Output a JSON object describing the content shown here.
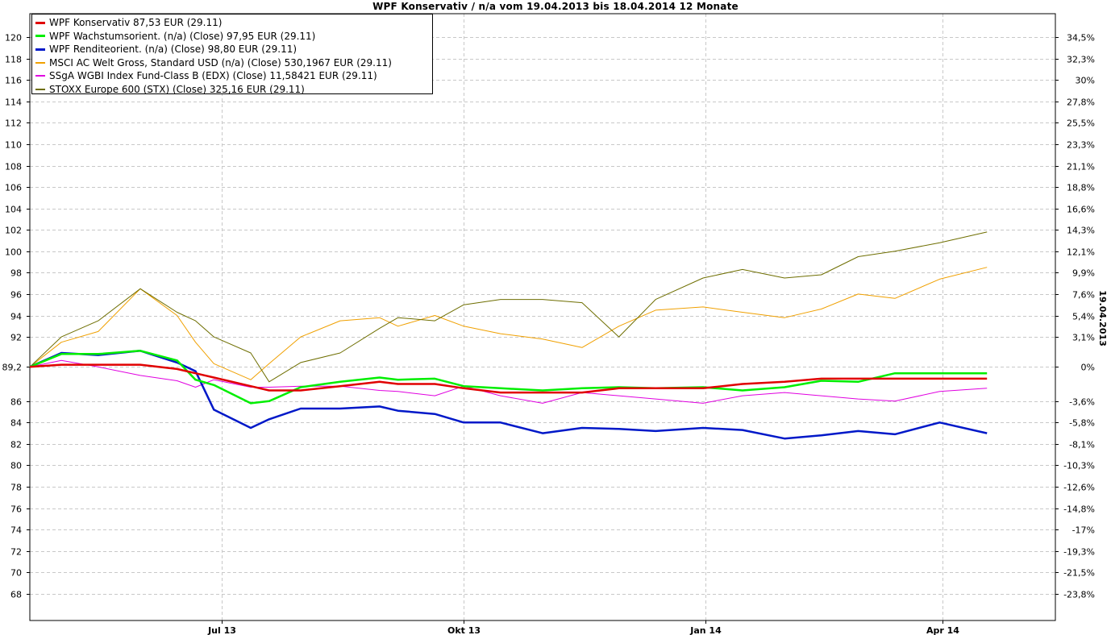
{
  "chart_data": {
    "type": "line",
    "title": "WPF Konservativ / n/a vom 19.04.2013 bis 18.04.2014 12 Monate",
    "xlabel": "",
    "ylabel": "",
    "x_range": [
      "2013-04-19",
      "2014-05-14"
    ],
    "x_ticks": [
      {
        "date": "2013-07-01",
        "label": "Jul 13"
      },
      {
        "date": "2013-10-01",
        "label": "Okt 13"
      },
      {
        "date": "2014-01-01",
        "label": "Jan 14"
      },
      {
        "date": "2014-04-01",
        "label": "Apr 14"
      }
    ],
    "ylim": [
      65.5,
      122.2
    ],
    "y_ticks": [
      68,
      70,
      72,
      74,
      76,
      78,
      80,
      82,
      84,
      86,
      89.2,
      92,
      94,
      96,
      98,
      100,
      102,
      104,
      106,
      108,
      110,
      112,
      114,
      116,
      118,
      120
    ],
    "y_tick_labels": [
      "68",
      "70",
      "72",
      "74",
      "76",
      "78",
      "80",
      "82",
      "84",
      "86",
      "89,2",
      "92",
      "94",
      "96",
      "98",
      "100",
      "102",
      "104",
      "106",
      "108",
      "110",
      "112",
      "114",
      "116",
      "118",
      "120"
    ],
    "y2_ticks": [
      {
        "label": "34,5%",
        "value": 120
      },
      {
        "label": "32,3%",
        "value": 118
      },
      {
        "label": "30%",
        "value": 116
      },
      {
        "label": "27,8%",
        "value": 114
      },
      {
        "label": "25,5%",
        "value": 112
      },
      {
        "label": "23,3%",
        "value": 110
      },
      {
        "label": "21,1%",
        "value": 108
      },
      {
        "label": "18,8%",
        "value": 106
      },
      {
        "label": "16,6%",
        "value": 104
      },
      {
        "label": "14,3%",
        "value": 102
      },
      {
        "label": "12,1%",
        "value": 100
      },
      {
        "label": "9,9%",
        "value": 98
      },
      {
        "label": "7,6%",
        "value": 96
      },
      {
        "label": "5,4%",
        "value": 94
      },
      {
        "label": "3,1%",
        "value": 92
      },
      {
        "label": "0%",
        "value": 89.2
      },
      {
        "label": "-3,6%",
        "value": 86
      },
      {
        "label": "-5,8%",
        "value": 84
      },
      {
        "label": "-8,1%",
        "value": 82
      },
      {
        "label": "-10,3%",
        "value": 80
      },
      {
        "label": "-12,6%",
        "value": 78
      },
      {
        "label": "-14,8%",
        "value": 76
      },
      {
        "label": "-17%",
        "value": 74
      },
      {
        "label": "-19,3%",
        "value": 72
      },
      {
        "label": "-21,5%",
        "value": 70
      },
      {
        "label": "-23,8%",
        "value": 68
      }
    ],
    "side_label": "19.04.2013",
    "grid": true,
    "legend_position": "top-left",
    "series": [
      {
        "name": "WPF Konservativ 87,53 EUR (29.11)",
        "color": "#e00000",
        "width": 2.5,
        "points": [
          [
            "2013-04-19",
            89.2
          ],
          [
            "2013-05-01",
            89.4
          ],
          [
            "2013-05-15",
            89.4
          ],
          [
            "2013-05-31",
            89.4
          ],
          [
            "2013-06-14",
            89.0
          ],
          [
            "2013-06-21",
            88.6
          ],
          [
            "2013-06-28",
            88.2
          ],
          [
            "2013-07-12",
            87.4
          ],
          [
            "2013-07-19",
            87.0
          ],
          [
            "2013-07-31",
            87.0
          ],
          [
            "2013-08-15",
            87.4
          ],
          [
            "2013-08-30",
            87.8
          ],
          [
            "2013-09-06",
            87.6
          ],
          [
            "2013-09-20",
            87.6
          ],
          [
            "2013-10-01",
            87.2
          ],
          [
            "2013-10-15",
            86.8
          ],
          [
            "2013-10-31",
            86.8
          ],
          [
            "2013-11-15",
            86.8
          ],
          [
            "2013-11-29",
            87.2
          ],
          [
            "2013-12-13",
            87.2
          ],
          [
            "2013-12-31",
            87.2
          ],
          [
            "2014-01-15",
            87.6
          ],
          [
            "2014-01-31",
            87.8
          ],
          [
            "2014-02-14",
            88.1
          ],
          [
            "2014-02-28",
            88.1
          ],
          [
            "2014-03-14",
            88.1
          ],
          [
            "2014-03-31",
            88.1
          ],
          [
            "2014-04-18",
            88.1
          ]
        ]
      },
      {
        "name": "WPF Wachstumsorient. (n/a) (Close) 97,95 EUR (29.11)",
        "color": "#00ee00",
        "width": 2.5,
        "points": [
          [
            "2013-04-19",
            89.2
          ],
          [
            "2013-05-01",
            90.4
          ],
          [
            "2013-05-15",
            90.4
          ],
          [
            "2013-05-31",
            90.7
          ],
          [
            "2013-06-14",
            89.8
          ],
          [
            "2013-06-21",
            88.0
          ],
          [
            "2013-06-28",
            87.5
          ],
          [
            "2013-07-12",
            85.8
          ],
          [
            "2013-07-19",
            86.0
          ],
          [
            "2013-07-31",
            87.3
          ],
          [
            "2013-08-15",
            87.8
          ],
          [
            "2013-08-30",
            88.2
          ],
          [
            "2013-09-06",
            88.0
          ],
          [
            "2013-09-20",
            88.1
          ],
          [
            "2013-10-01",
            87.4
          ],
          [
            "2013-10-15",
            87.2
          ],
          [
            "2013-10-31",
            87.0
          ],
          [
            "2013-11-15",
            87.2
          ],
          [
            "2013-11-29",
            87.3
          ],
          [
            "2013-12-13",
            87.2
          ],
          [
            "2013-12-31",
            87.3
          ],
          [
            "2014-01-15",
            87.0
          ],
          [
            "2014-01-31",
            87.3
          ],
          [
            "2014-02-14",
            87.9
          ],
          [
            "2014-02-28",
            87.8
          ],
          [
            "2014-03-14",
            88.6
          ],
          [
            "2014-03-31",
            88.6
          ],
          [
            "2014-04-18",
            88.6
          ]
        ]
      },
      {
        "name": "WPF Renditeorient. (n/a) (Close) 98,80 EUR (29.11)",
        "color": "#0018c8",
        "width": 2.5,
        "points": [
          [
            "2013-04-19",
            89.2
          ],
          [
            "2013-05-01",
            90.5
          ],
          [
            "2013-05-15",
            90.3
          ],
          [
            "2013-05-31",
            90.7
          ],
          [
            "2013-06-14",
            89.6
          ],
          [
            "2013-06-21",
            88.8
          ],
          [
            "2013-06-28",
            85.2
          ],
          [
            "2013-07-12",
            83.5
          ],
          [
            "2013-07-19",
            84.3
          ],
          [
            "2013-07-31",
            85.3
          ],
          [
            "2013-08-15",
            85.3
          ],
          [
            "2013-08-30",
            85.5
          ],
          [
            "2013-09-06",
            85.1
          ],
          [
            "2013-09-20",
            84.8
          ],
          [
            "2013-10-01",
            84.0
          ],
          [
            "2013-10-15",
            84.0
          ],
          [
            "2013-10-31",
            83.0
          ],
          [
            "2013-11-15",
            83.5
          ],
          [
            "2013-11-29",
            83.4
          ],
          [
            "2013-12-13",
            83.2
          ],
          [
            "2013-12-31",
            83.5
          ],
          [
            "2014-01-15",
            83.3
          ],
          [
            "2014-01-31",
            82.5
          ],
          [
            "2014-02-14",
            82.8
          ],
          [
            "2014-02-28",
            83.2
          ],
          [
            "2014-03-14",
            82.9
          ],
          [
            "2014-03-31",
            84.0
          ],
          [
            "2014-04-18",
            83.0
          ]
        ]
      },
      {
        "name": "MSCI AC Welt Gross, Standard USD (n/a) (Close) 530,1967 EUR (29.11)",
        "color": "#f0a000",
        "width": 1,
        "points": [
          [
            "2013-04-19",
            89.2
          ],
          [
            "2013-05-01",
            91.5
          ],
          [
            "2013-05-15",
            92.5
          ],
          [
            "2013-05-31",
            96.5
          ],
          [
            "2013-06-14",
            94.0
          ],
          [
            "2013-06-21",
            91.5
          ],
          [
            "2013-06-28",
            89.5
          ],
          [
            "2013-07-12",
            88.0
          ],
          [
            "2013-07-19",
            89.5
          ],
          [
            "2013-07-31",
            92.0
          ],
          [
            "2013-08-15",
            93.5
          ],
          [
            "2013-08-30",
            93.8
          ],
          [
            "2013-09-06",
            93.0
          ],
          [
            "2013-09-20",
            94.0
          ],
          [
            "2013-10-01",
            93.0
          ],
          [
            "2013-10-15",
            92.3
          ],
          [
            "2013-10-31",
            91.8
          ],
          [
            "2013-11-15",
            91.0
          ],
          [
            "2013-11-29",
            93.0
          ],
          [
            "2013-12-13",
            94.5
          ],
          [
            "2013-12-31",
            94.8
          ],
          [
            "2014-01-15",
            94.3
          ],
          [
            "2014-01-31",
            93.8
          ],
          [
            "2014-02-14",
            94.6
          ],
          [
            "2014-02-28",
            96.0
          ],
          [
            "2014-03-14",
            95.6
          ],
          [
            "2014-03-31",
            97.4
          ],
          [
            "2014-04-18",
            98.5
          ]
        ]
      },
      {
        "name": "SSgA WGBI Index Fund-Class B (EDX) (Close) 11,58421 EUR (29.11)",
        "color": "#e000e0",
        "width": 1,
        "points": [
          [
            "2013-04-19",
            89.2
          ],
          [
            "2013-05-01",
            89.8
          ],
          [
            "2013-05-15",
            89.2
          ],
          [
            "2013-05-31",
            88.4
          ],
          [
            "2013-06-14",
            87.9
          ],
          [
            "2013-06-21",
            87.3
          ],
          [
            "2013-06-28",
            88.0
          ],
          [
            "2013-07-12",
            87.3
          ],
          [
            "2013-07-19",
            87.3
          ],
          [
            "2013-07-31",
            87.4
          ],
          [
            "2013-08-15",
            87.4
          ],
          [
            "2013-08-30",
            87.0
          ],
          [
            "2013-09-06",
            86.9
          ],
          [
            "2013-09-20",
            86.5
          ],
          [
            "2013-10-01",
            87.4
          ],
          [
            "2013-10-15",
            86.5
          ],
          [
            "2013-10-31",
            85.8
          ],
          [
            "2013-11-15",
            86.8
          ],
          [
            "2013-11-29",
            86.5
          ],
          [
            "2013-12-13",
            86.2
          ],
          [
            "2013-12-31",
            85.8
          ],
          [
            "2014-01-15",
            86.5
          ],
          [
            "2014-01-31",
            86.8
          ],
          [
            "2014-02-14",
            86.5
          ],
          [
            "2014-02-28",
            86.2
          ],
          [
            "2014-03-14",
            86.0
          ],
          [
            "2014-03-31",
            86.9
          ],
          [
            "2014-04-18",
            87.2
          ]
        ]
      },
      {
        "name": "STOXX Europe 600 (STX) (Close) 325,16 EUR (29.11)",
        "color": "#6e6e00",
        "width": 1,
        "points": [
          [
            "2013-04-19",
            89.2
          ],
          [
            "2013-05-01",
            92.0
          ],
          [
            "2013-05-15",
            93.5
          ],
          [
            "2013-05-31",
            96.5
          ],
          [
            "2013-06-14",
            94.3
          ],
          [
            "2013-06-21",
            93.5
          ],
          [
            "2013-06-28",
            92.0
          ],
          [
            "2013-07-12",
            90.5
          ],
          [
            "2013-07-19",
            87.8
          ],
          [
            "2013-07-31",
            89.6
          ],
          [
            "2013-08-15",
            90.5
          ],
          [
            "2013-08-30",
            92.8
          ],
          [
            "2013-09-06",
            93.8
          ],
          [
            "2013-09-20",
            93.5
          ],
          [
            "2013-10-01",
            95.0
          ],
          [
            "2013-10-15",
            95.5
          ],
          [
            "2013-10-31",
            95.5
          ],
          [
            "2013-11-15",
            95.2
          ],
          [
            "2013-11-29",
            92.0
          ],
          [
            "2013-12-13",
            95.5
          ],
          [
            "2013-12-31",
            97.5
          ],
          [
            "2014-01-15",
            98.3
          ],
          [
            "2014-01-31",
            97.5
          ],
          [
            "2014-02-14",
            97.8
          ],
          [
            "2014-02-28",
            99.5
          ],
          [
            "2014-03-14",
            100.0
          ],
          [
            "2014-03-31",
            100.8
          ],
          [
            "2014-04-18",
            101.8
          ]
        ]
      }
    ]
  }
}
